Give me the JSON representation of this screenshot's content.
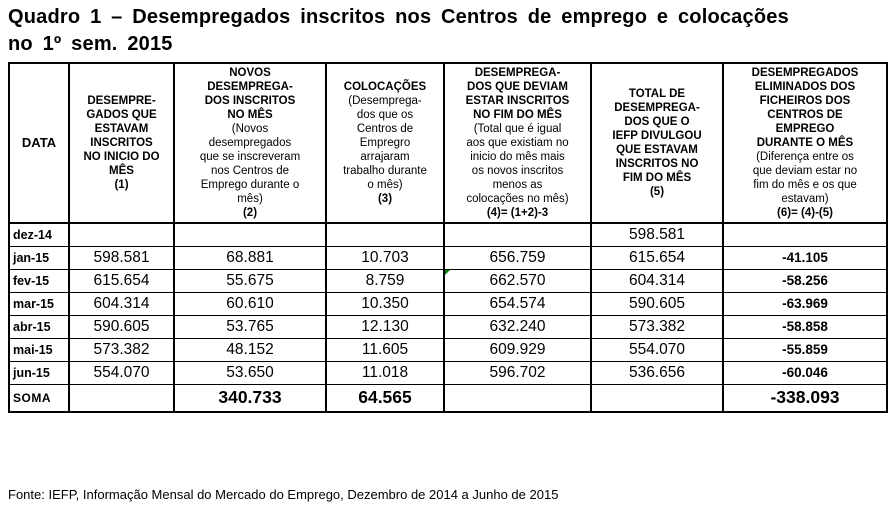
{
  "title": "Quadro 1 – Desempregados inscritos nos Centros de emprego e colocações no 1º sem. 2015",
  "table": {
    "date_header": "DATA",
    "columns": [
      {
        "title": "DESEMPRE-\nGADOS QUE\nESTAVAM\nINSCRITOS\nNO INICIO DO\nMÊS",
        "note": "",
        "formula": "(1)"
      },
      {
        "title": "NOVOS\nDESEMPREGA-\nDOS INSCRITOS\nNO MÊS",
        "note": "(Novos\ndesempregados\nque se inscreveram\nnos Centros de\nEmprego durante o\nmês)",
        "formula": "(2)"
      },
      {
        "title": "COLOCAÇÕES",
        "note": "(Desemprega-\ndos que os\nCentros de\nEmpregro\narrajaram\ntrabalho durante\no mês)",
        "formula": "(3)"
      },
      {
        "title": "DESEMPREGA-\nDOS QUE DEVIAM\nESTAR INSCRITOS\nNO FIM DO MÊS",
        "note": "(Total que é igual\naos que existiam no\ninicio do mês mais\nos novos inscritos\nmenos as\ncolocações no mês)",
        "formula": "(4)= (1+2)-3"
      },
      {
        "title": "TOTAL DE\nDESEMPREGA-\nDOS QUE O\nIEFP DIVULGOU\nQUE ESTAVAM\nINSCRITOS NO\nFIM DO MÊS",
        "note": "",
        "formula": "(5)"
      },
      {
        "title": "DESEMPREGADOS\nELIMINADOS DOS\nFICHEIROS DOS\nCENTROS DE\nEMPREGO\nDURANTE O MÊS",
        "note": "(Diferença entre os\nque deviam estar no\nfim do mês e os que\nestavam)",
        "formula": "(6)= (4)-(5)"
      }
    ],
    "rows": [
      {
        "date": "dez-14",
        "c1": "",
        "c2": "",
        "c3": "",
        "c4": "",
        "c5": "598.581",
        "c6": ""
      },
      {
        "date": "jan-15",
        "c1": "598.581",
        "c2": "68.881",
        "c3": "10.703",
        "c4": "656.759",
        "c5": "615.654",
        "c6": "-41.105"
      },
      {
        "date": "fev-15",
        "c1": "615.654",
        "c2": "55.675",
        "c3": "8.759",
        "c4": "662.570",
        "c5": "604.314",
        "c6": "-58.256"
      },
      {
        "date": "mar-15",
        "c1": "604.314",
        "c2": "60.610",
        "c3": "10.350",
        "c4": "654.574",
        "c5": "590.605",
        "c6": "-63.969"
      },
      {
        "date": "abr-15",
        "c1": "590.605",
        "c2": "53.765",
        "c3": "12.130",
        "c4": "632.240",
        "c5": "573.382",
        "c6": "-58.858"
      },
      {
        "date": "mai-15",
        "c1": "573.382",
        "c2": "48.152",
        "c3": "11.605",
        "c4": "609.929",
        "c5": "554.070",
        "c6": "-55.859"
      },
      {
        "date": "jun-15",
        "c1": "554.070",
        "c2": "53.650",
        "c3": "11.018",
        "c4": "596.702",
        "c5": "536.656",
        "c6": "-60.046"
      }
    ],
    "soma": {
      "label": "SOMA",
      "c1": "",
      "c2": "340.733",
      "c3": "64.565",
      "c4": "",
      "c5": "",
      "c6": "-338.093"
    },
    "marker_color": "#008000"
  },
  "footer": "Fonte: IEFP, Informação Mensal do Mercado do Emprego, Dezembro de 2014 a Junho de 2015"
}
